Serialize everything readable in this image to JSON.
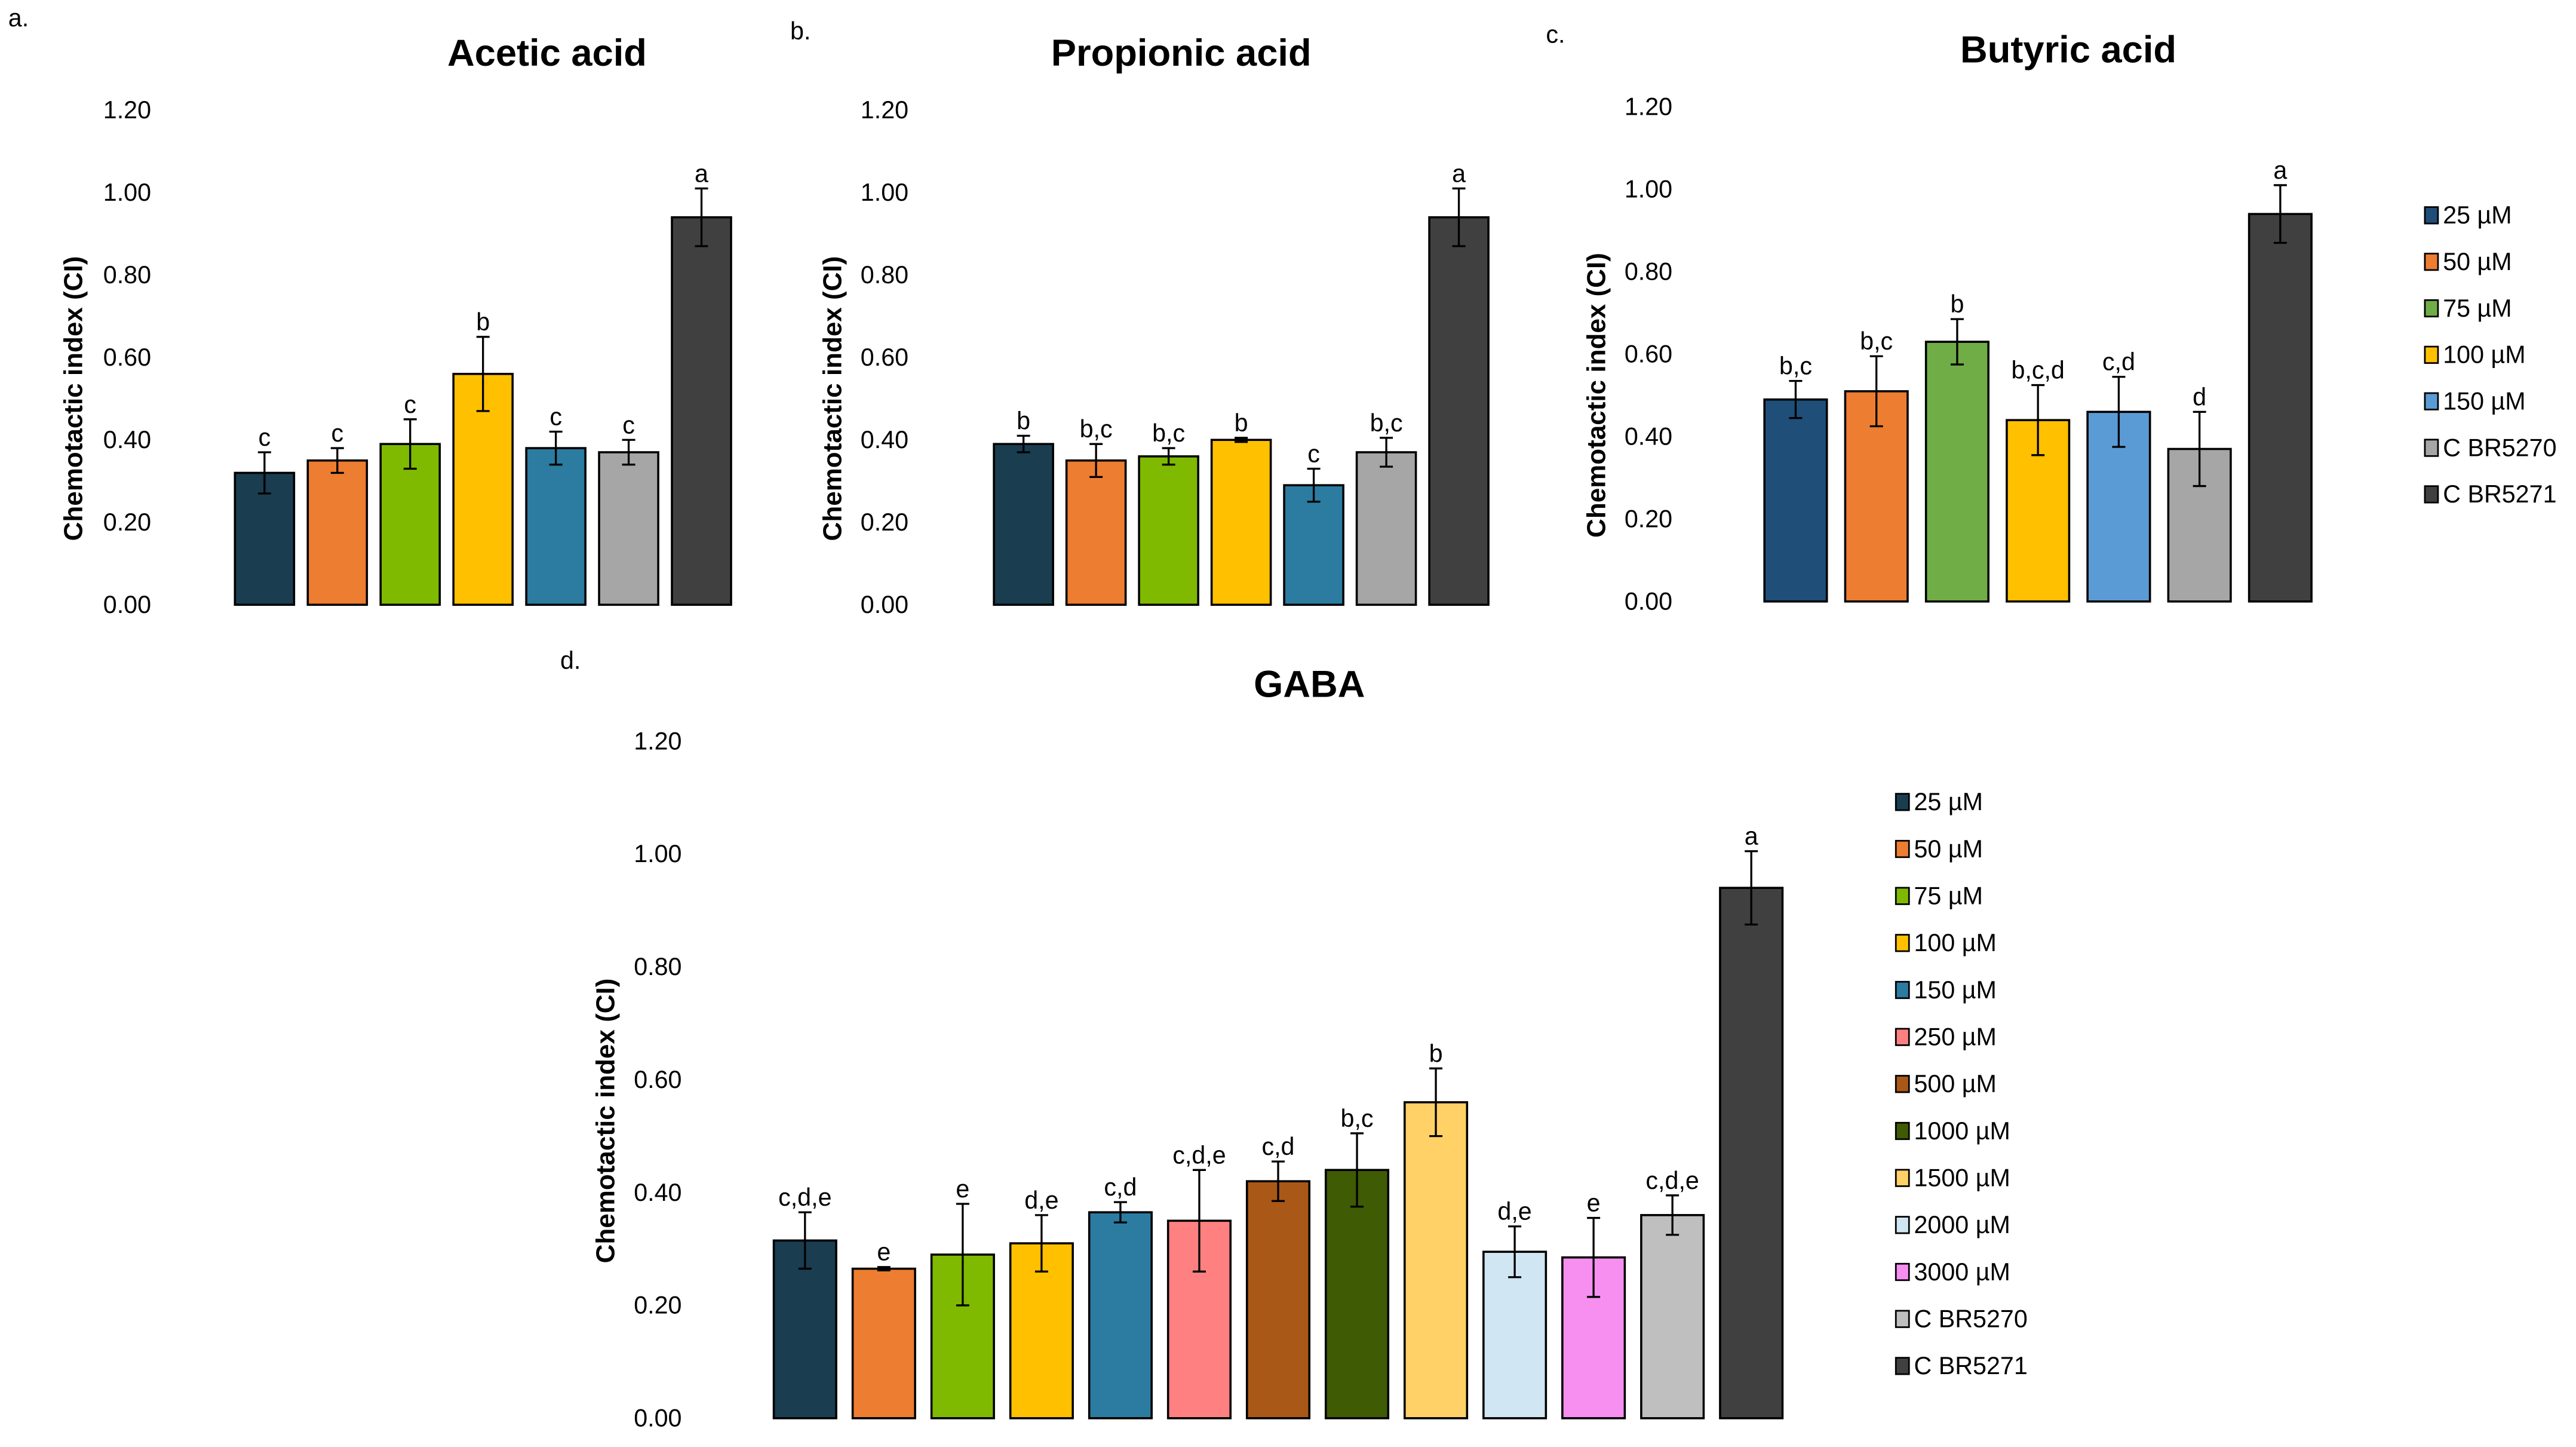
{
  "chart_data": [
    {
      "type": "bar",
      "panel": "a.",
      "title": "Acetic acid",
      "ylabel": "Chemotactic index (CI)",
      "ylim": [
        0,
        1.2
      ],
      "yticks": [
        "0.00",
        "0.20",
        "0.40",
        "0.60",
        "0.80",
        "1.00",
        "1.20"
      ],
      "grid": false,
      "legend": null,
      "categories": [
        "25 µM",
        "50 µM",
        "75 µM",
        "100 µM",
        "150 µM",
        "C BR5270",
        "C BR5271"
      ],
      "values": [
        0.32,
        0.35,
        0.39,
        0.56,
        0.38,
        0.37,
        0.94
      ],
      "errors": [
        0.05,
        0.03,
        0.06,
        0.09,
        0.04,
        0.03,
        0.07
      ],
      "letters": [
        "c",
        "c",
        "c",
        "b",
        "c",
        "c",
        "a"
      ],
      "colors": [
        "#1a3d50",
        "#ed7d31",
        "#7fba00",
        "#ffc000",
        "#2c7ba0",
        "#a6a6a6",
        "#404040"
      ]
    },
    {
      "type": "bar",
      "panel": "b.",
      "title": "Propionic acid",
      "ylabel": "Chemotactic index (CI)",
      "ylim": [
        0,
        1.2
      ],
      "yticks": [
        "0.00",
        "0.20",
        "0.40",
        "0.60",
        "0.80",
        "1.00",
        "1.20"
      ],
      "grid": false,
      "legend": null,
      "categories": [
        "25 µM",
        "50 µM",
        "75 µM",
        "100 µM",
        "150 µM",
        "C BR5270",
        "C BR5271"
      ],
      "values": [
        0.39,
        0.35,
        0.36,
        0.4,
        0.29,
        0.37,
        0.94
      ],
      "errors": [
        0.02,
        0.04,
        0.02,
        0.005,
        0.04,
        0.035,
        0.07
      ],
      "letters": [
        "b",
        "b,c",
        "b,c",
        "b",
        "c",
        "b,c",
        "a"
      ],
      "colors": [
        "#1a3d50",
        "#ed7d31",
        "#7fba00",
        "#ffc000",
        "#2c7ba0",
        "#a6a6a6",
        "#404040"
      ]
    },
    {
      "type": "bar",
      "panel": "c.",
      "title": "Butyric acid",
      "ylabel": "Chemotactic index (CI)",
      "ylim": [
        0,
        1.2
      ],
      "yticks": [
        "0.00",
        "0.20",
        "0.40",
        "0.60",
        "0.80",
        "1.00",
        "1.20"
      ],
      "grid": false,
      "legend": "right",
      "categories": [
        "25 µM",
        "50 µM",
        "75 µM",
        "100 µM",
        "150 µM",
        "C BR5270",
        "C BR5271"
      ],
      "values": [
        0.49,
        0.51,
        0.63,
        0.44,
        0.46,
        0.37,
        0.94
      ],
      "errors": [
        0.045,
        0.085,
        0.055,
        0.085,
        0.085,
        0.09,
        0.07
      ],
      "letters": [
        "b,c",
        "b,c",
        "b",
        "b,c,d",
        "c,d",
        "d",
        "a"
      ],
      "colors": [
        "#1f4e79",
        "#ed7d31",
        "#70ad47",
        "#ffc000",
        "#5b9bd5",
        "#a6a6a6",
        "#404040"
      ]
    },
    {
      "type": "bar",
      "panel": "d.",
      "title": "GABA",
      "ylabel": "Chemotactic index (CI)",
      "ylim": [
        0,
        1.2
      ],
      "yticks": [
        "0.00",
        "0.20",
        "0.40",
        "0.60",
        "0.80",
        "1.00",
        "1.20"
      ],
      "grid": false,
      "legend": "right",
      "categories": [
        "25 µM",
        "50 µM",
        "75 µM",
        "100 µM",
        "150 µM",
        "250 µM",
        "500 µM",
        "1000 µM",
        "1500 µM",
        "2000 µM",
        "3000 µM",
        "C BR5270",
        "C BR5271"
      ],
      "values": [
        0.315,
        0.265,
        0.29,
        0.31,
        0.365,
        0.35,
        0.42,
        0.44,
        0.56,
        0.295,
        0.285,
        0.36,
        0.94
      ],
      "errors": [
        0.05,
        0.003,
        0.09,
        0.05,
        0.018,
        0.09,
        0.035,
        0.065,
        0.06,
        0.045,
        0.07,
        0.035,
        0.065
      ],
      "letters": [
        "c,d,e",
        "e",
        "e",
        "d,e",
        "c,d",
        "c,d,e",
        "c,d",
        "b,c",
        "b",
        "d,e",
        "e",
        "c,d,e",
        "a"
      ],
      "colors": [
        "#1a3d50",
        "#ed7d31",
        "#7fba00",
        "#ffc000",
        "#2c7ba0",
        "#ff8080",
        "#a95817",
        "#3f5b04",
        "#ffd166",
        "#d0e6f2",
        "#f68ff0",
        "#bfbfbf",
        "#404040"
      ]
    }
  ]
}
